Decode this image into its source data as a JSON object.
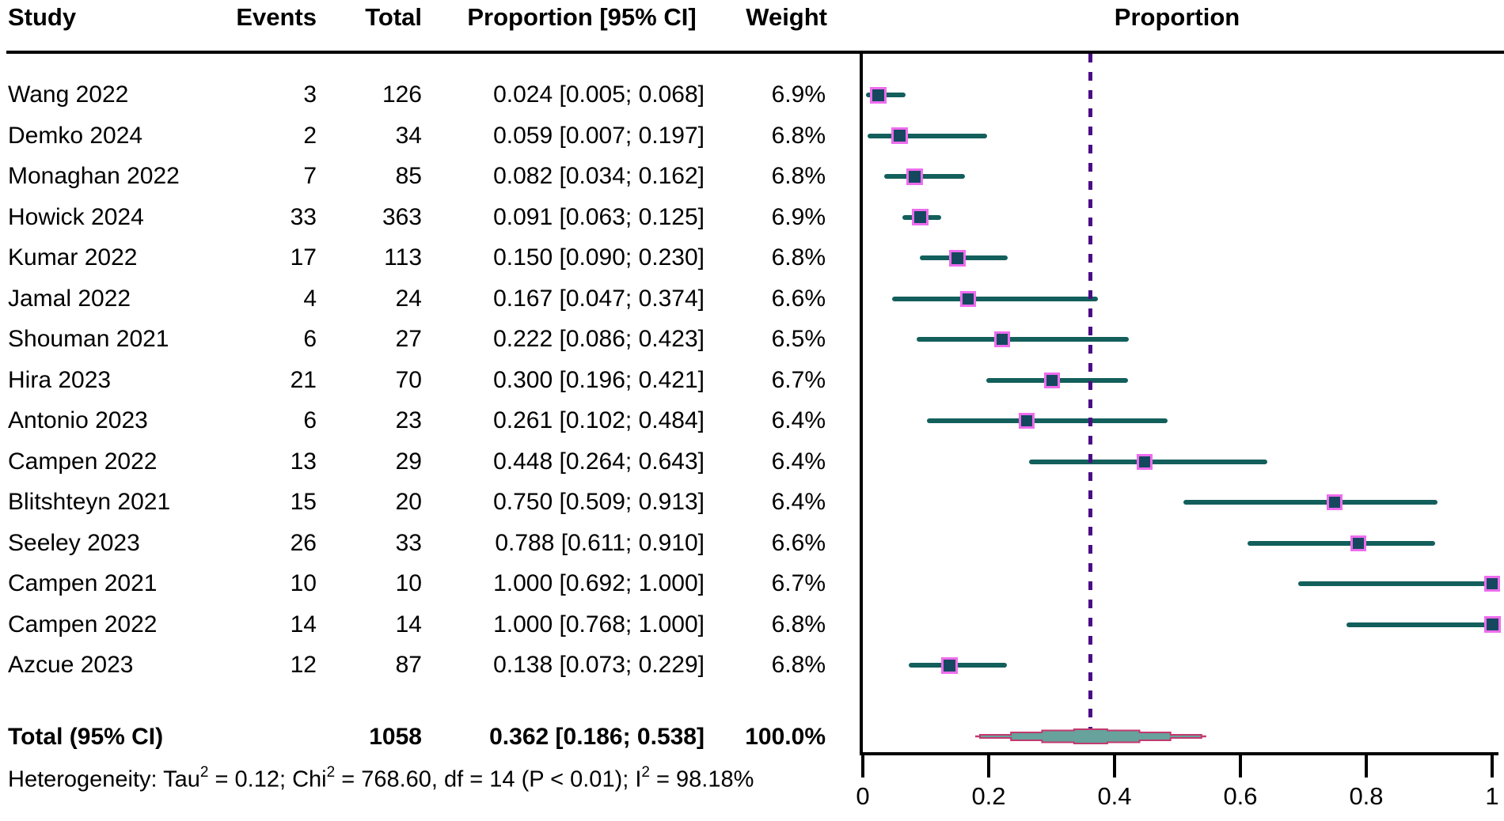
{
  "header": {
    "study": "Study",
    "events": "Events",
    "total": "Total",
    "proportion_ci": "Proportion [95% CI]",
    "weight": "Weight",
    "plot_title": "Proportion"
  },
  "colors": {
    "text": "#000000",
    "axis": "#000000",
    "ci_line": "#135f5c",
    "marker_fill": "#15485f",
    "marker_border": "#ee6cee",
    "reference_dash": "#4b0d86",
    "diamond_fill": "#67a29d",
    "diamond_border": "#c23a6e"
  },
  "chart_data": {
    "type": "forest",
    "title": "Proportion",
    "x_axis": {
      "range": [
        0,
        1
      ],
      "ticks": [
        0,
        0.2,
        0.4,
        0.6,
        0.8,
        1
      ],
      "tick_labels": [
        "0",
        "0.2",
        "0.4",
        "0.6",
        "0.8",
        "1"
      ]
    },
    "reference_line": 0.362,
    "studies": [
      {
        "name": "Wang 2022",
        "events": "3",
        "total": "126",
        "proportion_text": "0.024 [0.005; 0.068]",
        "weight_text": "6.9%",
        "weight": 6.9,
        "est": 0.024,
        "lo": 0.005,
        "hi": 0.068
      },
      {
        "name": "Demko 2024",
        "events": "2",
        "total": "34",
        "proportion_text": "0.059 [0.007; 0.197]",
        "weight_text": "6.8%",
        "weight": 6.8,
        "est": 0.059,
        "lo": 0.007,
        "hi": 0.197
      },
      {
        "name": "Monaghan 2022",
        "events": "7",
        "total": "85",
        "proportion_text": "0.082 [0.034; 0.162]",
        "weight_text": "6.8%",
        "weight": 6.8,
        "est": 0.082,
        "lo": 0.034,
        "hi": 0.162
      },
      {
        "name": "Howick 2024",
        "events": "33",
        "total": "363",
        "proportion_text": "0.091 [0.063; 0.125]",
        "weight_text": "6.9%",
        "weight": 6.9,
        "est": 0.091,
        "lo": 0.063,
        "hi": 0.125
      },
      {
        "name": "Kumar 2022",
        "events": "17",
        "total": "113",
        "proportion_text": "0.150 [0.090; 0.230]",
        "weight_text": "6.8%",
        "weight": 6.8,
        "est": 0.15,
        "lo": 0.09,
        "hi": 0.23
      },
      {
        "name": "Jamal 2022",
        "events": "4",
        "total": "24",
        "proportion_text": "0.167 [0.047; 0.374]",
        "weight_text": "6.6%",
        "weight": 6.6,
        "est": 0.167,
        "lo": 0.047,
        "hi": 0.374
      },
      {
        "name": "Shouman 2021",
        "events": "6",
        "total": "27",
        "proportion_text": "0.222 [0.086; 0.423]",
        "weight_text": "6.5%",
        "weight": 6.5,
        "est": 0.222,
        "lo": 0.086,
        "hi": 0.423
      },
      {
        "name": "Hira 2023",
        "events": "21",
        "total": "70",
        "proportion_text": "0.300 [0.196; 0.421]",
        "weight_text": "6.7%",
        "weight": 6.7,
        "est": 0.3,
        "lo": 0.196,
        "hi": 0.421
      },
      {
        "name": "Antonio 2023",
        "events": "6",
        "total": "23",
        "proportion_text": "0.261 [0.102; 0.484]",
        "weight_text": "6.4%",
        "weight": 6.4,
        "est": 0.261,
        "lo": 0.102,
        "hi": 0.484
      },
      {
        "name": "Campen 2022",
        "events": "13",
        "total": "29",
        "proportion_text": "0.448 [0.264; 0.643]",
        "weight_text": "6.4%",
        "weight": 6.4,
        "est": 0.448,
        "lo": 0.264,
        "hi": 0.643
      },
      {
        "name": "Blitshteyn 2021",
        "events": "15",
        "total": "20",
        "proportion_text": "0.750 [0.509; 0.913]",
        "weight_text": "6.4%",
        "weight": 6.4,
        "est": 0.75,
        "lo": 0.509,
        "hi": 0.913
      },
      {
        "name": "Seeley 2023",
        "events": "26",
        "total": "33",
        "proportion_text": "0.788 [0.611; 0.910]",
        "weight_text": "6.6%",
        "weight": 6.6,
        "est": 0.788,
        "lo": 0.611,
        "hi": 0.91
      },
      {
        "name": "Campen 2021",
        "events": "10",
        "total": "10",
        "proportion_text": "1.000 [0.692; 1.000]",
        "weight_text": "6.7%",
        "weight": 6.7,
        "est": 1.0,
        "lo": 0.692,
        "hi": 1.0
      },
      {
        "name": "Campen 2022",
        "events": "14",
        "total": "14",
        "proportion_text": "1.000 [0.768; 1.000]",
        "weight_text": "6.8%",
        "weight": 6.8,
        "est": 1.0,
        "lo": 0.768,
        "hi": 1.0
      },
      {
        "name": "Azcue 2023",
        "events": "12",
        "total": "87",
        "proportion_text": "0.138 [0.073; 0.229]",
        "weight_text": "6.8%",
        "weight": 6.8,
        "est": 0.138,
        "lo": 0.073,
        "hi": 0.229
      }
    ],
    "total_row": {
      "label": "Total (95% CI)",
      "total": "1058",
      "proportion_text": "0.362 [0.186; 0.538]",
      "weight_text": "100.0%",
      "est": 0.362,
      "lo": 0.186,
      "hi": 0.538
    },
    "heterogeneity_segments": [
      {
        "text": "Heterogeneity: Tau"
      },
      {
        "text": "2",
        "sup": true
      },
      {
        "text": " = 0.12; Chi"
      },
      {
        "text": "2",
        "sup": true
      },
      {
        "text": " = 768.60, df = 14 (P < 0.01); I"
      },
      {
        "text": "2",
        "sup": true
      },
      {
        "text": " = 98.18%"
      }
    ]
  }
}
